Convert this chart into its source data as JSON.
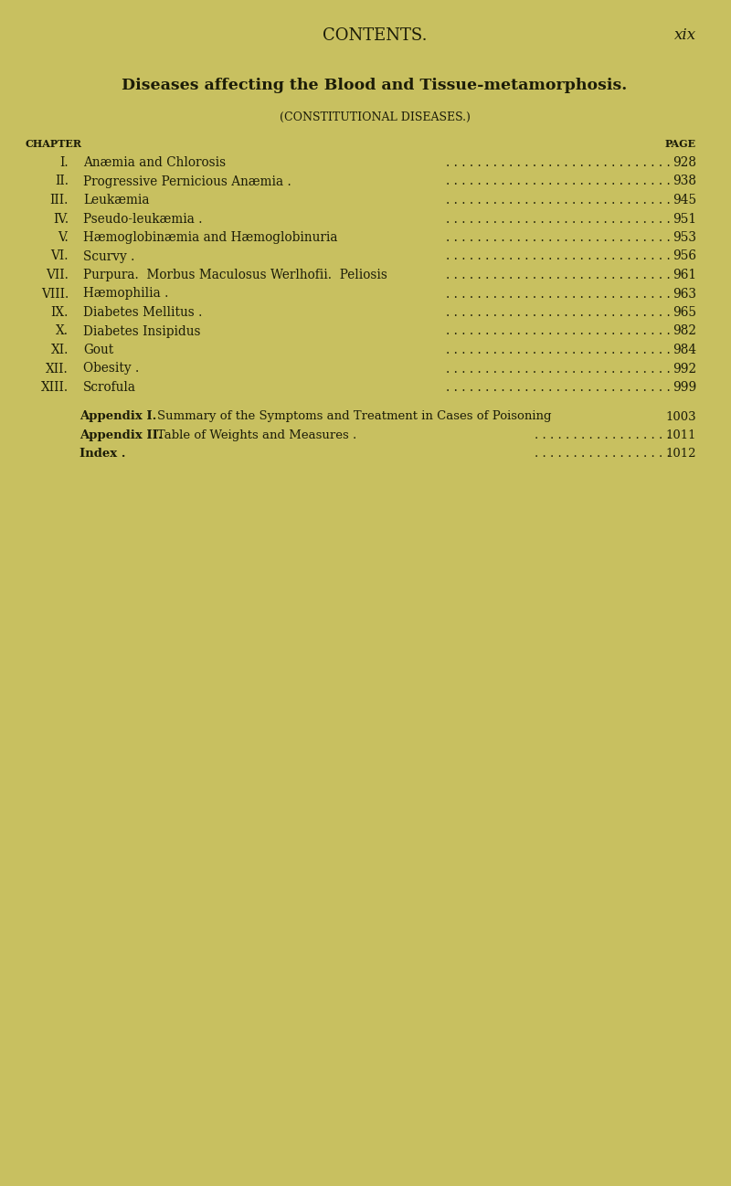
{
  "background_color": "#c8c060",
  "header_title": "CONTENTS.",
  "header_page_num": "xix",
  "section_title": "Diseases affecting the Blood and Tissue-metamorphosis.",
  "section_subtitle": "(CONSTITUTIONAL DISEASES.)",
  "col_left_label": "CHAPTER",
  "col_right_label": "PAGE",
  "entries": [
    {
      "num": "I.",
      "title": "Anæmia and Chlorosis",
      "page": "928"
    },
    {
      "num": "II.",
      "title": "Progressive Pernicious Anæmia .",
      "page": "938"
    },
    {
      "num": "III.",
      "title": "Leukæmia",
      "page": "945"
    },
    {
      "num": "IV.",
      "title": "Pseudo-leukæmia .",
      "page": "951"
    },
    {
      "num": "V.",
      "title": "Hæmoglobinæmia and Hæmoglobinuria",
      "page": "953"
    },
    {
      "num": "VI.",
      "title": "Scurvy .",
      "page": "956"
    },
    {
      "num": "VII.",
      "title": "Purpura.  Morbus Maculosus Werlhofii.  Peliosis",
      "page": "961"
    },
    {
      "num": "VIII.",
      "title": "Hæmophilia .",
      "page": "963"
    },
    {
      "num": "IX.",
      "title": "Diabetes Mellitus .",
      "page": "965"
    },
    {
      "num": "X.",
      "title": "Diabetes Insipidus",
      "page": "982"
    },
    {
      "num": "XI.",
      "title": "Gout",
      "page": "984"
    },
    {
      "num": "XII.",
      "title": "Obesity .",
      "page": "992"
    },
    {
      "num": "XIII.",
      "title": "Scrofula",
      "page": "999"
    }
  ],
  "appendix_entries": [
    {
      "label": "Appendix I.",
      "title": "Summary of the Symptoms and Treatment in Cases of Poisoning",
      "page": "1003",
      "has_dots": false
    },
    {
      "label": "Appendix II.",
      "title": "Table of Weights and Measures .",
      "page": "1011",
      "has_dots": true
    },
    {
      "label": "Index .",
      "title": "",
      "page": "1012",
      "has_dots": true
    }
  ],
  "text_color": "#1c1c08",
  "dot_leaders": " .  .  .  .  .  .  .  .  .  .  .  .  .  .  .  .  .  .  .  .  .  . ",
  "entry_font_size": 9.8,
  "header_font_size": 13,
  "section_title_font_size": 12.5,
  "subtitle_font_size": 9.0,
  "col_header_font_size": 8.0,
  "appendix_font_size": 9.5
}
